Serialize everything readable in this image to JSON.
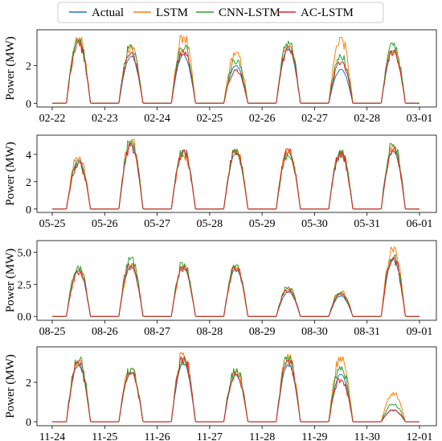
{
  "legend": {
    "entries": [
      {
        "name": "Actual",
        "color": "#1f77b4"
      },
      {
        "name": "LSTM",
        "color": "#ff7f0e"
      },
      {
        "name": "CNN-LSTM",
        "color": "#2ca02c"
      },
      {
        "name": "AC-LSTM",
        "color": "#d62728"
      }
    ]
  },
  "chart_data": [
    {
      "type": "line",
      "ylabel": "Power (MW)",
      "ylim": [
        -0.2,
        3.9
      ],
      "yticks": [
        0,
        2
      ],
      "tick_labels_x": [
        "02-22",
        "02-23",
        "02-24",
        "02-25",
        "02-26",
        "02-27",
        "02-28",
        "03-01"
      ],
      "x_unit": "day",
      "daily_peak_mw": {
        "Actual": [
          3.4,
          2.5,
          2.6,
          2.0,
          2.9,
          1.8,
          2.8
        ],
        "LSTM": [
          3.5,
          3.1,
          3.6,
          2.7,
          3.2,
          3.5,
          2.9
        ],
        "CNN-LSTM": [
          3.4,
          3.1,
          3.1,
          2.3,
          3.3,
          2.6,
          3.2
        ],
        "AC-LSTM": [
          3.3,
          2.7,
          2.8,
          1.8,
          3.0,
          2.2,
          2.8
        ]
      },
      "grid": false
    },
    {
      "type": "line",
      "ylabel": "Power (MW)",
      "ylim": [
        -0.25,
        5.4
      ],
      "yticks": [
        0,
        2,
        4
      ],
      "tick_labels_x": [
        "05-25",
        "05-26",
        "05-27",
        "05-28",
        "05-29",
        "05-30",
        "05-31",
        "06-01"
      ],
      "x_unit": "day",
      "daily_peak_mw": {
        "Actual": [
          3.6,
          4.7,
          4.3,
          4.1,
          4.2,
          4.2,
          4.3
        ],
        "LSTM": [
          3.9,
          5.1,
          4.1,
          4.4,
          4.3,
          4.2,
          4.6
        ],
        "CNN-LSTM": [
          3.5,
          5.0,
          4.3,
          4.4,
          4.1,
          4.3,
          4.8
        ],
        "AC-LSTM": [
          3.4,
          4.8,
          4.3,
          4.3,
          4.4,
          4.2,
          4.5
        ]
      },
      "grid": false
    },
    {
      "type": "line",
      "ylabel": "Power (MW)",
      "ylim": [
        -0.3,
        5.9
      ],
      "yticks": [
        0.0,
        2.5,
        5.0
      ],
      "ytick_labels": [
        "0.0",
        "2.5",
        "5.0"
      ],
      "tick_labels_x": [
        "08-25",
        "08-26",
        "08-27",
        "08-28",
        "08-29",
        "08-30",
        "08-31",
        "09-01"
      ],
      "x_unit": "day",
      "daily_peak_mw": {
        "Actual": [
          3.6,
          3.9,
          3.8,
          3.7,
          1.9,
          1.6,
          4.5
        ],
        "LSTM": [
          3.7,
          4.0,
          3.9,
          3.9,
          2.2,
          2.0,
          5.4
        ],
        "CNN-LSTM": [
          3.9,
          4.6,
          4.2,
          4.0,
          2.3,
          1.9,
          4.8
        ],
        "AC-LSTM": [
          3.6,
          4.1,
          3.9,
          3.8,
          2.1,
          1.8,
          4.6
        ]
      },
      "grid": false
    },
    {
      "type": "line",
      "ylabel": "Power (MW)",
      "ylim": [
        -0.2,
        3.8
      ],
      "yticks": [
        0,
        2
      ],
      "tick_labels_x": [
        "11-24",
        "11-25",
        "11-26",
        "11-27",
        "11-28",
        "11-29",
        "11-30",
        "12-01"
      ],
      "x_unit": "day",
      "daily_peak_mw": {
        "Actual": [
          2.9,
          2.5,
          3.0,
          2.4,
          2.9,
          2.4,
          0.6
        ],
        "LSTM": [
          3.1,
          2.7,
          3.5,
          2.6,
          3.4,
          3.3,
          1.5
        ],
        "CNN-LSTM": [
          3.3,
          2.7,
          3.2,
          2.7,
          3.3,
          2.8,
          0.9
        ],
        "AC-LSTM": [
          3.0,
          2.5,
          3.3,
          2.5,
          3.1,
          2.2,
          0.6
        ]
      },
      "grid": false
    }
  ]
}
